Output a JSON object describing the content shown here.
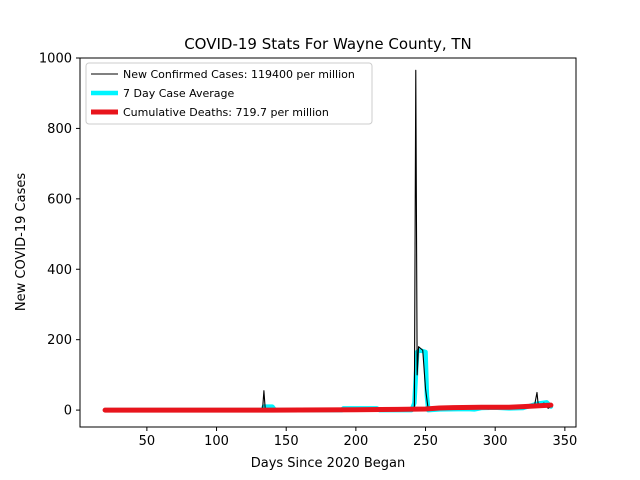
{
  "chart_data": {
    "type": "line",
    "title": "COVID-19 Stats For Wayne County, TN",
    "xlabel": "Days Since 2020 Began",
    "ylabel": "New COVID-19 Cases",
    "xlim": [
      2,
      358
    ],
    "ylim": [
      -48,
      1000
    ],
    "xticks": [
      50,
      100,
      150,
      200,
      250,
      300,
      350
    ],
    "yticks": [
      0,
      200,
      400,
      600,
      800,
      1000
    ],
    "grid": false,
    "legend_position": "top-left",
    "series": [
      {
        "name": "New Confirmed Cases: 119400 per million",
        "color": "#000000",
        "style": "thin",
        "points": [
          [
            20,
            0
          ],
          [
            133,
            0
          ],
          [
            134,
            55
          ],
          [
            135,
            0
          ],
          [
            190,
            0
          ],
          [
            191,
            3
          ],
          [
            200,
            2
          ],
          [
            210,
            3
          ],
          [
            220,
            0
          ],
          [
            240,
            0
          ],
          [
            242,
            10
          ],
          [
            243,
            965
          ],
          [
            244,
            100
          ],
          [
            245,
            180
          ],
          [
            248,
            170
          ],
          [
            250,
            60
          ],
          [
            252,
            0
          ],
          [
            260,
            2
          ],
          [
            270,
            3
          ],
          [
            280,
            4
          ],
          [
            290,
            6
          ],
          [
            295,
            3
          ],
          [
            300,
            8
          ],
          [
            310,
            5
          ],
          [
            320,
            6
          ],
          [
            328,
            8
          ],
          [
            330,
            50
          ],
          [
            331,
            10
          ],
          [
            335,
            20
          ],
          [
            338,
            5
          ],
          [
            340,
            10
          ]
        ]
      },
      {
        "name": "7 Day Case Average",
        "color": "#00f5ff",
        "style": "thick",
        "points": [
          [
            20,
            0
          ],
          [
            133,
            0
          ],
          [
            134,
            10
          ],
          [
            140,
            10
          ],
          [
            142,
            0
          ],
          [
            190,
            0
          ],
          [
            191,
            5
          ],
          [
            215,
            5
          ],
          [
            217,
            0
          ],
          [
            240,
            0
          ],
          [
            242,
            20
          ],
          [
            244,
            165
          ],
          [
            246,
            170
          ],
          [
            250,
            165
          ],
          [
            251,
            40
          ],
          [
            252,
            0
          ],
          [
            260,
            2
          ],
          [
            280,
            3
          ],
          [
            285,
            2
          ],
          [
            290,
            6
          ],
          [
            300,
            7
          ],
          [
            310,
            5
          ],
          [
            320,
            6
          ],
          [
            330,
            18
          ],
          [
            337,
            22
          ],
          [
            340,
            10
          ]
        ]
      },
      {
        "name": "Cumulative Deaths: 719.7 per million",
        "color": "#e8141c",
        "style": "thicker",
        "points": [
          [
            20,
            0
          ],
          [
            140,
            0
          ],
          [
            200,
            1
          ],
          [
            230,
            2
          ],
          [
            250,
            3
          ],
          [
            260,
            6
          ],
          [
            270,
            7
          ],
          [
            290,
            8
          ],
          [
            310,
            8
          ],
          [
            320,
            10
          ],
          [
            330,
            12
          ],
          [
            340,
            14
          ]
        ]
      }
    ]
  }
}
